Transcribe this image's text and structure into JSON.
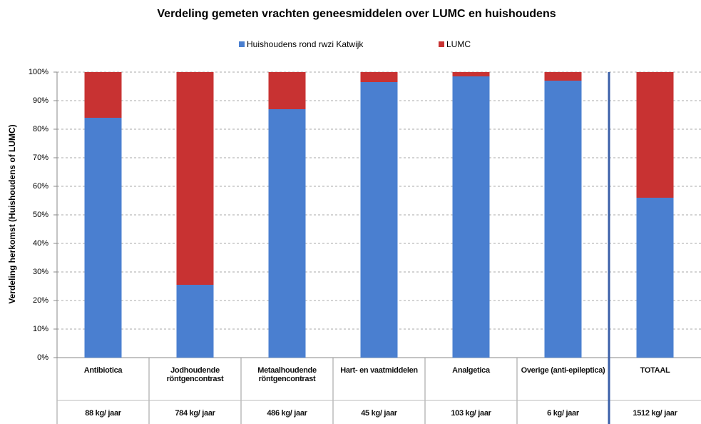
{
  "chart_data": {
    "type": "stacked_bar_100",
    "title": "Verdeling gemeten vrachten geneesmiddelen over LUMC en huishoudens",
    "y_label": "Verdeling herkomst (Huishoudens of LUMC)",
    "categories": [
      "Antibiotica",
      "Jodhoudende röntgencontrast",
      "Metaalhoudende röntgencontrast",
      "Hart- en vaatmiddelen",
      "Analgetica",
      "Overige (anti-epileptica)",
      "TOTAAL"
    ],
    "category_sublabels": [
      "88 kg/ jaar",
      "784 kg/ jaar",
      "486 kg/ jaar",
      "45 kg/ jaar",
      "103 kg/ jaar",
      "6 kg/ jaar",
      "1512 kg/ jaar"
    ],
    "series": [
      {
        "name": "Huishoudens rond rwzi Katwijk",
        "color": "#4a7fd0",
        "values": [
          84,
          25.5,
          87,
          96.5,
          98.5,
          97,
          56
        ]
      },
      {
        "name": "LUMC",
        "color": "#c83232",
        "values": [
          16,
          74.5,
          13,
          3.5,
          1.5,
          3,
          44
        ]
      }
    ],
    "ylim": [
      0,
      100
    ],
    "yticks": [
      {
        "value": 0,
        "label": "0%"
      },
      {
        "value": 10,
        "label": "10%"
      },
      {
        "value": 20,
        "label": "20%"
      },
      {
        "value": 30,
        "label": "30%"
      },
      {
        "value": 40,
        "label": "40%"
      },
      {
        "value": 50,
        "label": "50%"
      },
      {
        "value": 60,
        "label": "60%"
      },
      {
        "value": 70,
        "label": "70%"
      },
      {
        "value": 80,
        "label": "80%"
      },
      {
        "value": 90,
        "label": "90%"
      },
      {
        "value": 100,
        "label": "100%"
      }
    ],
    "grid": true
  }
}
